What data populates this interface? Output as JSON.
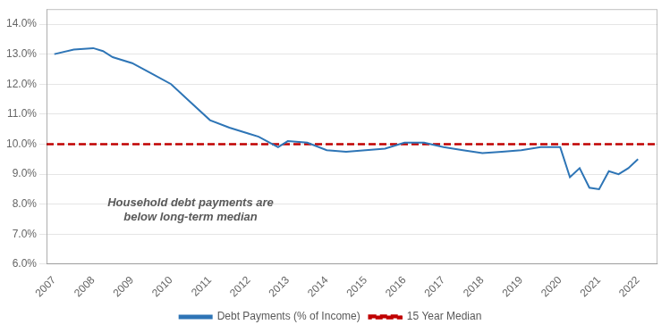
{
  "chart_data": {
    "type": "line",
    "x": [
      2007,
      2007.5,
      2008,
      2008.25,
      2008.5,
      2009,
      2009.5,
      2010,
      2010.5,
      2011,
      2011.5,
      2012,
      2012.25,
      2012.75,
      2013,
      2013.5,
      2014,
      2014.5,
      2015,
      2015.5,
      2016,
      2016.5,
      2017,
      2017.5,
      2018,
      2018.5,
      2019,
      2019.5,
      2020,
      2020.25,
      2020.5,
      2020.75,
      2021,
      2021.25,
      2021.5,
      2021.75,
      2022
    ],
    "series": [
      {
        "name": "Debt Payments (% of Income)",
        "color": "#2E75B6",
        "line_style": "solid",
        "values": [
          13.0,
          13.15,
          13.2,
          13.1,
          12.9,
          12.7,
          12.35,
          12.0,
          11.4,
          10.8,
          10.55,
          10.35,
          10.25,
          9.9,
          10.1,
          10.05,
          9.8,
          9.75,
          9.8,
          9.85,
          10.05,
          10.05,
          9.9,
          9.8,
          9.7,
          9.75,
          9.8,
          9.9,
          9.9,
          8.9,
          9.2,
          8.55,
          8.5,
          9.1,
          9.0,
          9.2,
          9.5
        ]
      },
      {
        "name": "15 Year Median",
        "color": "#C00000",
        "line_style": "dashed",
        "type": "hline",
        "value": 10.0
      }
    ],
    "xlim": [
      2006.8,
      2022.5
    ],
    "xticks": [
      2007,
      2008,
      2009,
      2010,
      2011,
      2012,
      2013,
      2014,
      2015,
      2016,
      2017,
      2018,
      2019,
      2020,
      2021,
      2022
    ],
    "ylim": [
      6.0,
      14.5
    ],
    "yticks": [
      {
        "value": 6.0,
        "label": "6.0%"
      },
      {
        "value": 7.0,
        "label": "7.0%"
      },
      {
        "value": 8.0,
        "label": "8.0%"
      },
      {
        "value": 9.0,
        "label": "9.0%"
      },
      {
        "value": 10.0,
        "label": "10.0%"
      },
      {
        "value": 11.0,
        "label": "11.0%"
      },
      {
        "value": 12.0,
        "label": "12.0%"
      },
      {
        "value": 13.0,
        "label": "13.0%"
      },
      {
        "value": 14.0,
        "label": "14.0%"
      }
    ],
    "annotations": [
      {
        "text": "Household debt payments are\nbelow long-term median",
        "x": 2010.5,
        "y": 7.8
      }
    ],
    "grid": "y",
    "legend": "bottom"
  }
}
